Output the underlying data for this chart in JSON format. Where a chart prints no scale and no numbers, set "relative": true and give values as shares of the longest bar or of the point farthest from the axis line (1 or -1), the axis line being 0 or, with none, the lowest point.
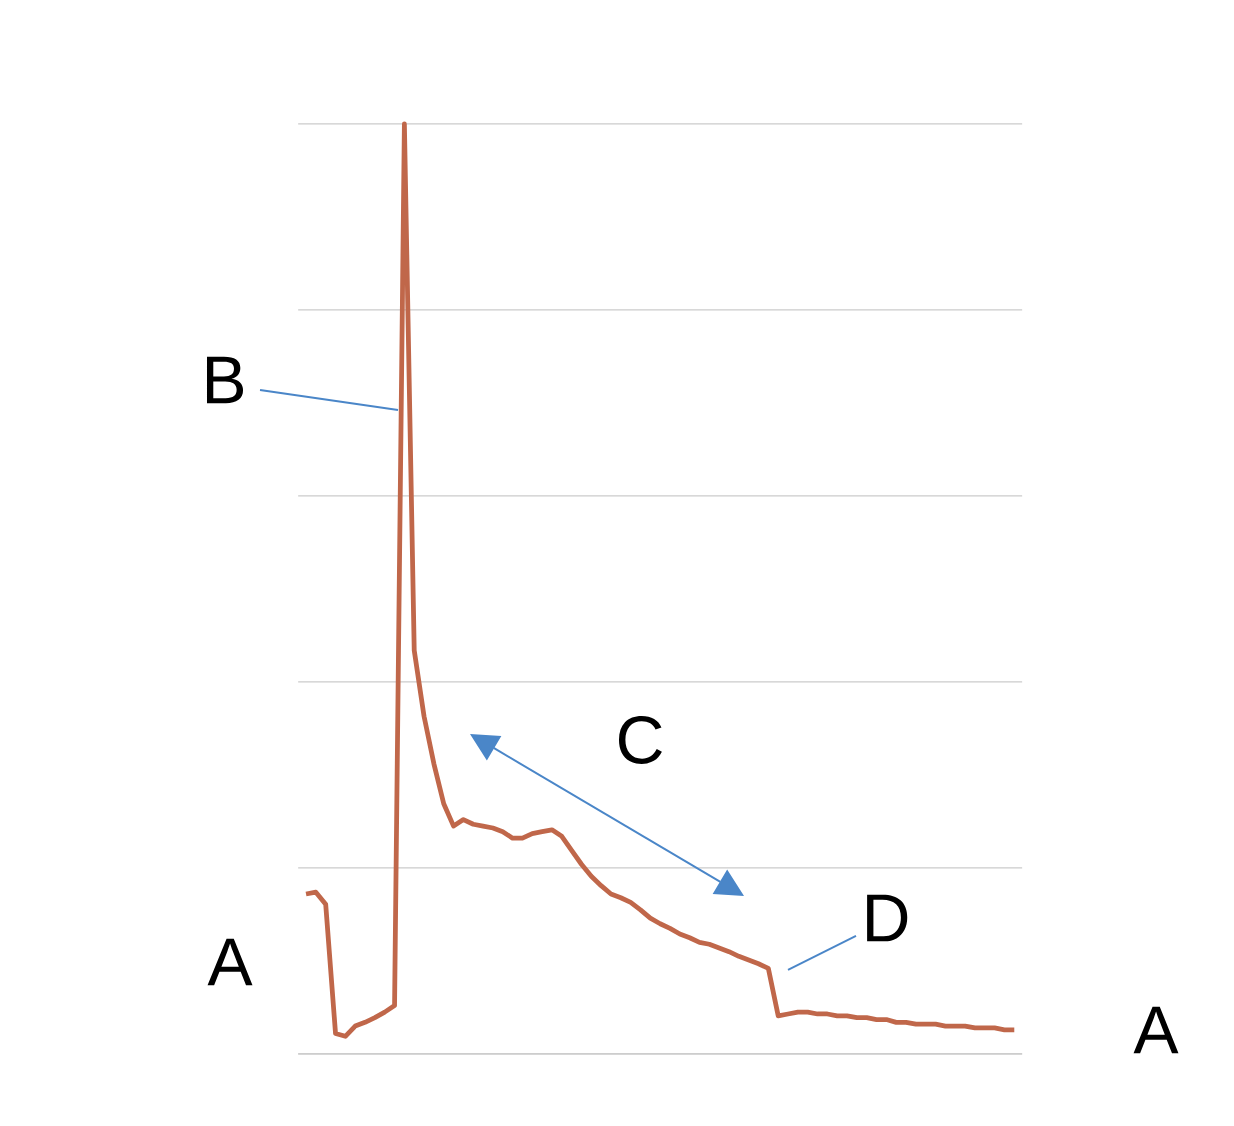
{
  "chart_data": {
    "type": "line",
    "relative": true,
    "grid": "y",
    "categories": [
      null,
      null,
      null,
      null,
      null,
      null,
      null,
      null,
      null,
      null,
      null,
      null,
      null,
      null,
      null,
      null,
      null,
      null,
      null,
      null,
      null,
      null,
      null,
      null,
      null,
      null,
      null,
      null,
      null,
      null,
      null,
      null,
      null,
      null,
      null,
      null,
      null,
      null,
      null,
      null,
      null,
      null,
      null,
      null,
      null,
      null,
      null,
      null,
      null,
      null,
      null,
      null,
      null,
      null,
      null,
      null,
      null,
      null,
      null,
      null,
      null,
      null,
      null,
      null,
      null,
      null,
      null,
      null,
      null,
      null,
      null,
      null,
      null
    ],
    "series": [
      {
        "color": "#c0674a",
        "values": [
          0.172,
          0.174,
          0.161,
          0.022,
          0.019,
          0.03,
          0.034,
          0.039,
          0.045,
          0.052,
          1,
          0.434,
          0.363,
          0.312,
          0.269,
          0.245,
          0.252,
          0.247,
          0.245,
          0.243,
          0.239,
          0.232,
          0.232,
          0.237,
          0.239,
          0.241,
          0.234,
          0.219,
          0.204,
          0.191,
          0.181,
          0.172,
          0.168,
          0.163,
          0.155,
          0.146,
          0.14,
          0.135,
          0.129,
          0.125,
          0.12,
          0.118,
          0.114,
          0.11,
          0.105,
          0.101,
          0.097,
          0.092,
          0.041,
          0.043,
          0.045,
          0.045,
          0.043,
          0.043,
          0.041,
          0.041,
          0.039,
          0.039,
          0.037,
          0.037,
          0.034,
          0.034,
          0.032,
          0.032,
          0.032,
          0.03,
          0.03,
          0.03,
          0.028,
          0.028,
          0.028,
          0.026,
          0.026
        ]
      }
    ],
    "annotations": [
      "A",
      "A",
      "B",
      "C",
      "D"
    ]
  }
}
